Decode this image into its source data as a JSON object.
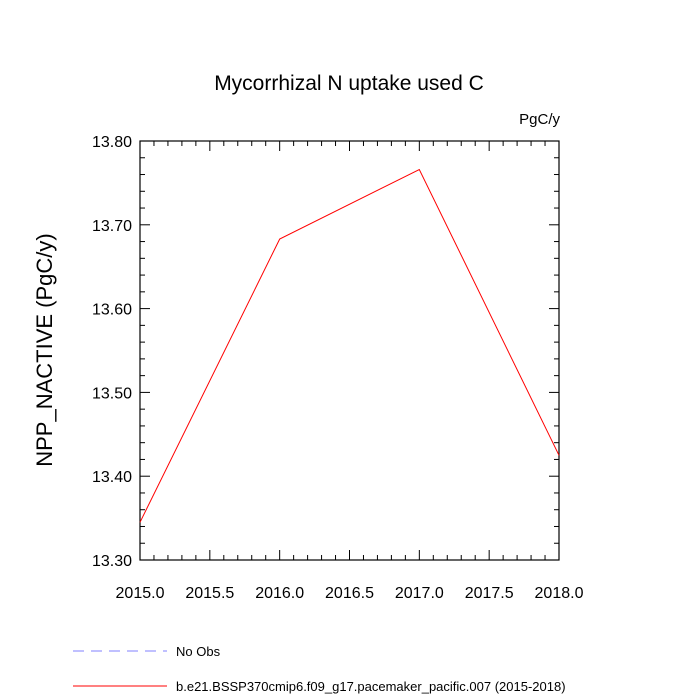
{
  "chart_data": {
    "type": "line",
    "title": "Mycorrhizal N uptake used C",
    "units": "PgC/y",
    "xlabel": "",
    "ylabel": "NPP_NACTIVE  (PgC/y)",
    "xlim": [
      2015.0,
      2018.0
    ],
    "ylim": [
      13.3,
      13.8
    ],
    "xticks": [
      "2015.0",
      "2015.5",
      "2016.0",
      "2016.5",
      "2017.0",
      "2017.5",
      "2018.0"
    ],
    "yticks": [
      "13.30",
      "13.40",
      "13.50",
      "13.60",
      "13.70",
      "13.80"
    ],
    "grid": false,
    "legend_position": "bottom",
    "series": [
      {
        "name": "b.e21.BSSP370cmip6.f09_g17.pacemaker_pacific.007 (2015-2018)",
        "color": "#ff0000",
        "style": "solid",
        "x": [
          2015,
          2016,
          2017,
          2018
        ],
        "y": [
          13.345,
          13.683,
          13.766,
          13.425
        ]
      }
    ],
    "legend": [
      {
        "label": "No Obs",
        "color": "#8080ff",
        "style": "dashed"
      },
      {
        "label": "b.e21.BSSP370cmip6.f09_g17.pacemaker_pacific.007 (2015-2018)",
        "color": "#ff0000",
        "style": "solid"
      }
    ]
  }
}
